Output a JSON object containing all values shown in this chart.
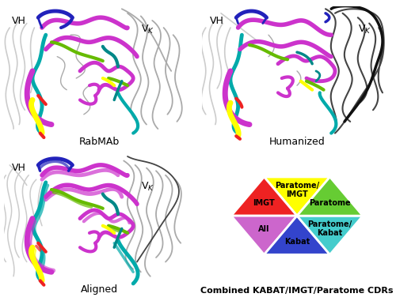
{
  "figure_size": [
    5.0,
    3.81
  ],
  "dpi": 100,
  "background_color": "#ffffff",
  "label_fontsize": 9,
  "protein_colors": {
    "magenta": "#cc33cc",
    "blue": "#2222bb",
    "cyan": "#00aaaa",
    "green": "#66bb00",
    "teal": "#008888",
    "yellow": "#ffff00",
    "red": "#ee2222",
    "gray_light": "#cccccc",
    "gray_mid": "#aaaaaa",
    "gray_dark": "#888888",
    "black": "#111111",
    "darkgray": "#444444"
  },
  "hexagon_segments": [
    {
      "label": "Paratome/\nIMGT",
      "color": "#ffff00",
      "v1": 60,
      "v2": 120
    },
    {
      "label": "IMGT",
      "color": "#ee2222",
      "v1": 120,
      "v2": 180
    },
    {
      "label": "All",
      "color": "#cc66cc",
      "v1": 180,
      "v2": 240
    },
    {
      "label": "Kabat",
      "color": "#3344cc",
      "v1": 240,
      "v2": 300
    },
    {
      "label": "Paratome/\nKabat",
      "color": "#44cccc",
      "v1": 300,
      "v2": 360
    },
    {
      "label": "Paratome",
      "color": "#66cc33",
      "v1": 0,
      "v2": 60
    }
  ],
  "hex_caption": "Combined KABAT/IMGT/Paratome CDRs"
}
